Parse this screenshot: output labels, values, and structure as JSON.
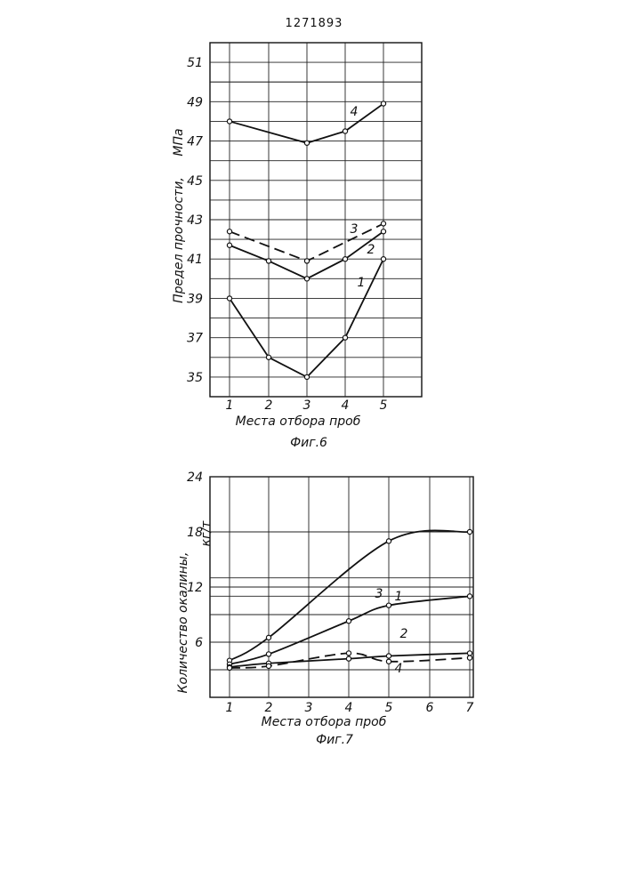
{
  "header": {
    "patent_number": "1271893"
  },
  "chart_data": [
    {
      "type": "line",
      "caption": "Фиг.6",
      "xlabel": "Места отбора проб",
      "ylabel": "Предел прочности,",
      "yunit": "МПа",
      "x": [
        1,
        2,
        3,
        4,
        5
      ],
      "xticks": [
        "1",
        "2",
        "3",
        "4",
        "5"
      ],
      "yticks": [
        "35",
        "37",
        "39",
        "41",
        "43",
        "45",
        "47",
        "49",
        "51"
      ],
      "ylim": [
        34,
        52
      ],
      "grid": true,
      "series": [
        {
          "name": "1",
          "dashed": false,
          "values": [
            39,
            36,
            35,
            37,
            41
          ]
        },
        {
          "name": "2",
          "dashed": false,
          "values": [
            41.7,
            40.9,
            40,
            41,
            42.4
          ]
        },
        {
          "name": "3",
          "dashed": true,
          "values": [
            42.4,
            null,
            40.9,
            null,
            42.8
          ]
        },
        {
          "name": "4",
          "dashed": false,
          "values": [
            48,
            null,
            46.9,
            47.5,
            48.9
          ]
        }
      ]
    },
    {
      "type": "line",
      "caption": "Фиг.7",
      "xlabel": "Места отбора проб",
      "ylabel": "Количество окалины,",
      "yunit": "кг/т",
      "x": [
        1,
        2,
        3,
        4,
        5,
        6,
        7
      ],
      "xticks": [
        "1",
        "2",
        "3",
        "4",
        "5",
        "6",
        "7"
      ],
      "yticks": [
        "6",
        "12",
        "18",
        "24"
      ],
      "ylim": [
        0,
        24
      ],
      "grid": true,
      "series": [
        {
          "name": "1",
          "dashed": false,
          "values": [
            4,
            6.5,
            null,
            null,
            17,
            null,
            18
          ]
        },
        {
          "name": "3",
          "dashed": false,
          "values": [
            3.6,
            4.7,
            null,
            8.3,
            10,
            null,
            11
          ]
        },
        {
          "name": "2",
          "dashed": false,
          "values": [
            3.3,
            3.7,
            null,
            4.2,
            4.5,
            null,
            4.8
          ]
        },
        {
          "name": "4",
          "dashed": true,
          "values": [
            3.2,
            3.4,
            null,
            4.8,
            3.9,
            null,
            4.3
          ]
        }
      ]
    }
  ]
}
